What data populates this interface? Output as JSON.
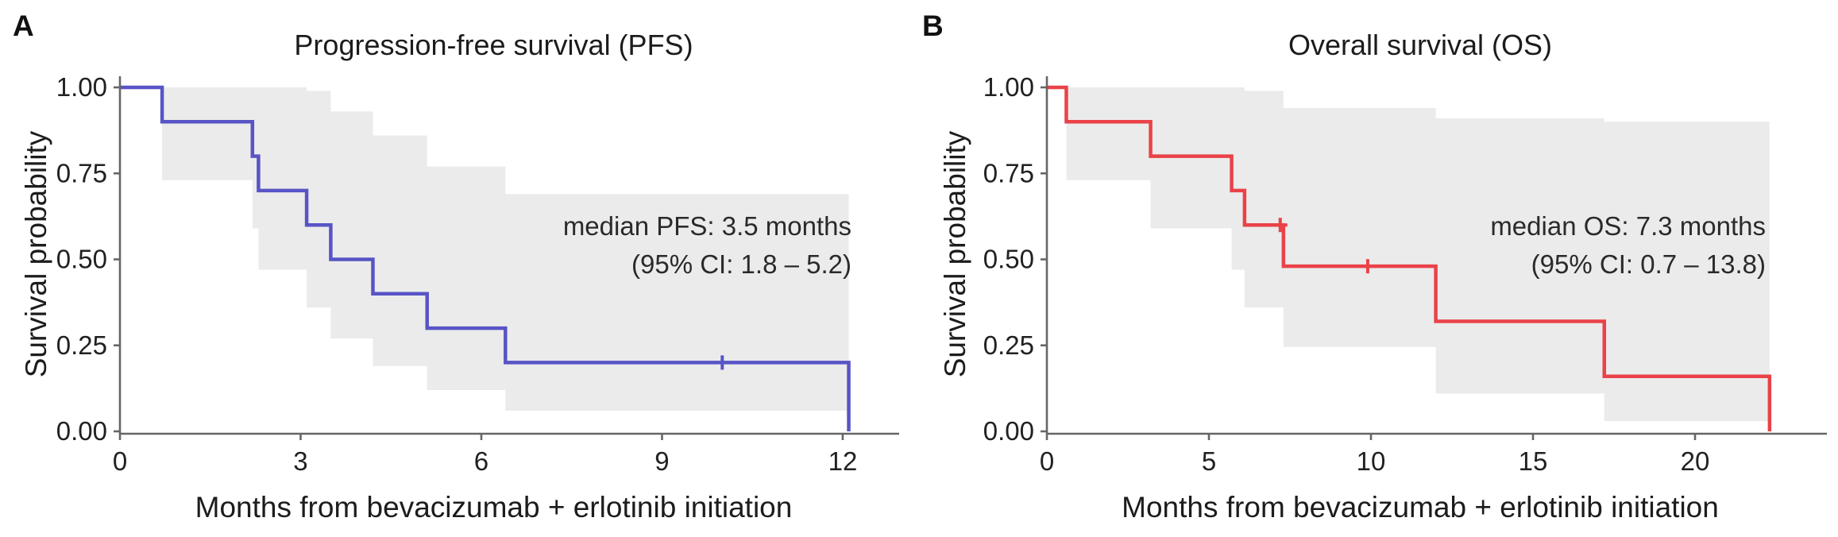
{
  "figure": {
    "background": "#ffffff",
    "text_color": "#1c1c1c",
    "axis_color": "#666666"
  },
  "chart_data": [
    {
      "type": "line",
      "subtype": "kaplan-meier-step",
      "panel_letter": "A",
      "title": "Progression-free survival (PFS)",
      "xlabel": "Months from bevacizumab + erlotinib initiation",
      "ylabel": "Survival probability",
      "annotation": [
        "median PFS: 3.5 months",
        "(95% CI: 1.8 – 5.2)"
      ],
      "median": {
        "label": "median PFS",
        "months": 3.5,
        "ci95_low": 1.8,
        "ci95_high": 5.2
      },
      "line_color": "#5854c6",
      "ci_fill": "#ebebeb",
      "xlim": [
        0,
        12.9
      ],
      "ylim": [
        0,
        1
      ],
      "x_ticks": [
        0,
        3,
        6,
        9,
        12
      ],
      "y_ticks": [
        {
          "value": 0.0,
          "label": "0.00"
        },
        {
          "value": 0.25,
          "label": "0.25"
        },
        {
          "value": 0.5,
          "label": "0.50"
        },
        {
          "value": 0.75,
          "label": "0.75"
        },
        {
          "value": 1.0,
          "label": "1.00"
        }
      ],
      "survival_steps": [
        [
          0,
          1.0
        ],
        [
          0.7,
          0.9
        ],
        [
          2.2,
          0.8
        ],
        [
          2.3,
          0.7
        ],
        [
          3.1,
          0.6
        ],
        [
          3.5,
          0.5
        ],
        [
          4.2,
          0.4
        ],
        [
          5.1,
          0.3
        ],
        [
          6.4,
          0.2
        ],
        [
          12.1,
          0.0
        ]
      ],
      "censor_marks": [
        [
          10.0,
          0.2
        ]
      ],
      "ci_steps": [
        [
          0.7,
          0.73,
          1.0
        ],
        [
          2.2,
          0.59,
          1.0
        ],
        [
          2.3,
          0.47,
          1.0
        ],
        [
          3.1,
          0.36,
          0.99
        ],
        [
          3.5,
          0.27,
          0.93
        ],
        [
          4.2,
          0.19,
          0.86
        ],
        [
          5.1,
          0.12,
          0.77
        ],
        [
          6.4,
          0.06,
          0.69
        ]
      ],
      "ci_end": 12.1,
      "grid": "off",
      "legend": "none"
    },
    {
      "type": "line",
      "subtype": "kaplan-meier-step",
      "panel_letter": "B",
      "title": "Overall survival (OS)",
      "xlabel": "Months from bevacizumab + erlotinib initiation",
      "ylabel": "Survival probability",
      "annotation": [
        "median OS: 7.3 months",
        "(95% CI: 0.7 – 13.8)"
      ],
      "median": {
        "label": "median OS",
        "months": 7.3,
        "ci95_low": 0.7,
        "ci95_high": 13.8
      },
      "line_color": "#ea4248",
      "ci_fill": "#ebebeb",
      "xlim": [
        0,
        24.0
      ],
      "ylim": [
        0,
        1
      ],
      "x_ticks": [
        0,
        5,
        10,
        15,
        20
      ],
      "y_ticks": [
        {
          "value": 0.0,
          "label": "0.00"
        },
        {
          "value": 0.25,
          "label": "0.25"
        },
        {
          "value": 0.5,
          "label": "0.50"
        },
        {
          "value": 0.75,
          "label": "0.75"
        },
        {
          "value": 1.0,
          "label": "1.00"
        }
      ],
      "survival_steps": [
        [
          0,
          1.0
        ],
        [
          0.6,
          0.9
        ],
        [
          3.2,
          0.8
        ],
        [
          5.7,
          0.7
        ],
        [
          6.1,
          0.6
        ],
        [
          7.3,
          0.48
        ],
        [
          12.0,
          0.32
        ],
        [
          17.2,
          0.16
        ],
        [
          22.3,
          0.0
        ]
      ],
      "censor_marks": [
        [
          7.2,
          0.6
        ],
        [
          9.9,
          0.48
        ]
      ],
      "ci_steps": [
        [
          0.6,
          0.73,
          1.0
        ],
        [
          3.2,
          0.59,
          1.0
        ],
        [
          5.7,
          0.47,
          1.0
        ],
        [
          6.1,
          0.36,
          0.99
        ],
        [
          7.3,
          0.245,
          0.94
        ],
        [
          12.0,
          0.11,
          0.91
        ],
        [
          17.2,
          0.03,
          0.9
        ]
      ],
      "ci_end": 22.3,
      "grid": "off",
      "legend": "none"
    }
  ]
}
